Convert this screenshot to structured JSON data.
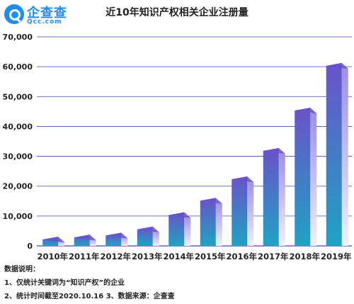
{
  "logo": {
    "name": "企查查",
    "sub": "Qcc.com"
  },
  "notes": {
    "heading": "数据说明：",
    "line1": "1、仅统计关键词为“知识产权”的企业",
    "line2": "2、统计时间截至2020.10.16  3、数据来源：企查查"
  },
  "colors": {
    "bar_top": "#6a52c9",
    "bar_bottom": "#1fa3c3",
    "bar_side": "#c9c1f0",
    "grid": "#3d4aa6"
  },
  "chart_data": {
    "type": "bar",
    "title": "近10年知识产权相关企业注册量",
    "xlabel": "",
    "ylabel": "",
    "categories": [
      "2010年",
      "2011年",
      "2012年",
      "2013年",
      "2014年",
      "2015年",
      "2016年",
      "2017年",
      "2018年",
      "2019年"
    ],
    "values": [
      2500,
      3300,
      4100,
      6500,
      11500,
      16300,
      23500,
      33000,
      46500,
      61500
    ],
    "ylim": [
      0,
      70000
    ],
    "yticks": [
      "0",
      "10,000",
      "20,000",
      "30,000",
      "40,000",
      "50,000",
      "60,000",
      "70,000"
    ],
    "grid": true
  }
}
